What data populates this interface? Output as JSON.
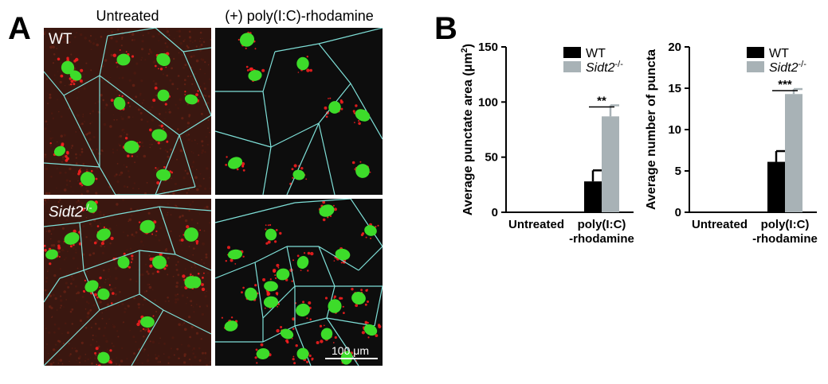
{
  "figure": {
    "panel_a_letter": "A",
    "panel_b_letter": "B",
    "columns": [
      "Untreated",
      "(+) poly(I:C)-rhodamine"
    ],
    "rows": [
      "WT",
      "Sidt2",
      "-/-"
    ],
    "scale_bar_label": "100 μm"
  },
  "colors": {
    "nucleus": "#3ddc2a",
    "cell_border": "#7fe0d8",
    "punctate": "#ff2020",
    "wt_bar": "#000000",
    "ko_bar": "#a8b2b6"
  },
  "chart_data": [
    {
      "type": "bar",
      "categories": [
        "Untreated",
        "poly(I:C)\n-rhodamine"
      ],
      "series": [
        {
          "name": "WT",
          "values": [
            0,
            28
          ],
          "errors": [
            0,
            10
          ]
        },
        {
          "name": "Sidt2-/-",
          "values": [
            0,
            87
          ],
          "errors": [
            0,
            10
          ]
        }
      ],
      "ylabel": "Average punctate area (μm²)",
      "ylim": [
        0,
        150
      ],
      "yticks": [
        "0",
        "50",
        "100",
        "150"
      ],
      "significance": "**",
      "legend": "top-right"
    },
    {
      "type": "bar",
      "categories": [
        "Untreated",
        "poly(I:C)\n-rhodamine"
      ],
      "series": [
        {
          "name": "WT",
          "values": [
            0,
            6.1
          ],
          "errors": [
            0,
            1.3
          ]
        },
        {
          "name": "Sidt2-/-",
          "values": [
            0,
            14.3
          ],
          "errors": [
            0,
            0.6
          ]
        }
      ],
      "ylabel": "Average number of puncta",
      "ylim": [
        0,
        20
      ],
      "yticks": [
        "0",
        "5",
        "10",
        "15",
        "20"
      ],
      "significance": "***",
      "legend": "top-right"
    }
  ]
}
